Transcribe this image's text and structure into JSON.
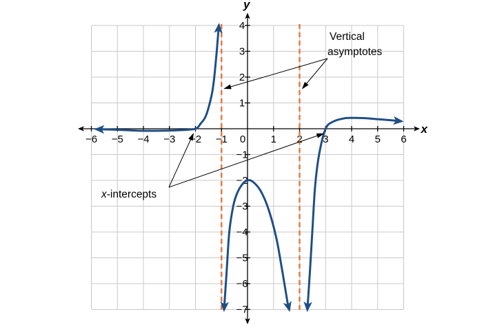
{
  "chart_data": {
    "type": "line",
    "title": "",
    "xlabel": "x",
    "ylabel": "y",
    "xlim": [
      -6,
      6
    ],
    "ylim": [
      -7,
      4
    ],
    "x_ticks": [
      -6,
      -5,
      -4,
      -3,
      -2,
      -1,
      0,
      1,
      2,
      3,
      4,
      5,
      6
    ],
    "y_ticks": [
      -7,
      -6,
      -5,
      -4,
      -3,
      -2,
      -1,
      1,
      2,
      3,
      4
    ],
    "grid": true,
    "vertical_asymptotes": [
      -1,
      2
    ],
    "x_intercepts": [
      -2,
      3
    ],
    "y_intercept": -2,
    "series": [
      {
        "color": "#1f4e86",
        "segments": [
          {
            "x": [
              -5.8,
              -5,
              -4,
              -3,
              -2.5,
              -2,
              -1.8,
              -1.6,
              -1.4,
              -1.3,
              -1.2,
              -1.15,
              -1.1
            ],
            "y": [
              -0.02,
              -0.04,
              -0.08,
              -0.07,
              -0.05,
              0,
              0.2,
              0.5,
              1.2,
              1.8,
              2.8,
              3.4,
              4.0
            ],
            "start_arrow": true,
            "end_arrow": true
          },
          {
            "x": [
              -0.9,
              -0.8,
              -0.7,
              -0.55,
              -0.4,
              -0.2,
              0,
              0.2,
              0.5,
              0.8,
              1.1,
              1.3,
              1.45,
              1.55,
              1.6
            ],
            "y": [
              -7,
              -5.5,
              -4.0,
              -3.0,
              -2.5,
              -2.15,
              -2.0,
              -2.05,
              -2.4,
              -3.1,
              -4.2,
              -5.3,
              -6.2,
              -6.8,
              -7.0
            ],
            "start_arrow": true,
            "end_arrow": true
          },
          {
            "x": [
              2.3,
              2.4,
              2.5,
              2.6,
              2.75,
              3,
              3.3,
              3.7,
              4,
              4.5,
              5,
              5.5,
              5.9
            ],
            "y": [
              -7.0,
              -5.5,
              -3.8,
              -2.2,
              -1.0,
              0,
              0.28,
              0.4,
              0.42,
              0.41,
              0.37,
              0.33,
              0.29
            ],
            "start_arrow": true,
            "end_arrow": true
          }
        ]
      }
    ],
    "annotations": [
      {
        "text": [
          "Vertical",
          "asymptotes"
        ],
        "targets": [
          [
            -1,
            1.5
          ],
          [
            2,
            1.5
          ]
        ]
      },
      {
        "text_prefix": "x",
        "text_suffix": "-intercepts",
        "targets": [
          [
            -2,
            0
          ],
          [
            3,
            0
          ]
        ]
      }
    ],
    "colors": {
      "curve": "#1f4e86",
      "asymptote": "#e8743b",
      "grid": "#c8c8c8",
      "axis": "#000000"
    }
  }
}
